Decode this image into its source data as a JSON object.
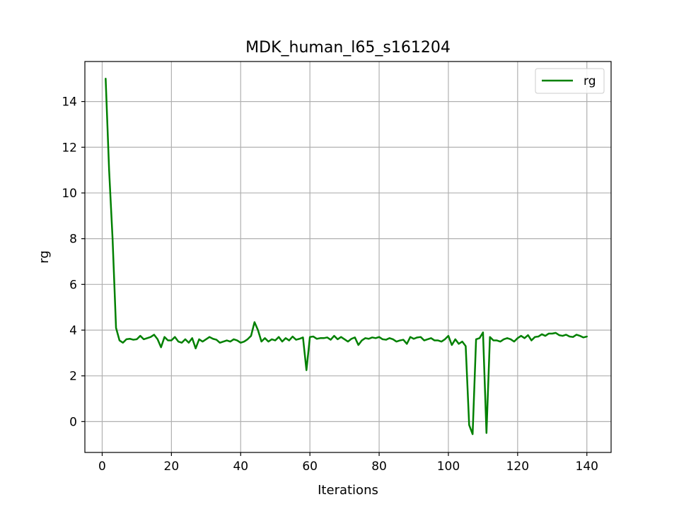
{
  "chart_data": {
    "type": "line",
    "title": "MDK_human_l65_s161204",
    "xlabel": "Iterations",
    "ylabel": "rg",
    "xlim": [
      -5,
      147
    ],
    "ylim": [
      -1.35,
      15.75
    ],
    "xticks": [
      0,
      20,
      40,
      60,
      80,
      100,
      120,
      140
    ],
    "yticks": [
      0,
      2,
      4,
      6,
      8,
      10,
      12,
      14
    ],
    "grid": true,
    "legend_position": "top-right",
    "series": [
      {
        "name": "rg",
        "color": "#008000",
        "x": [
          1,
          2,
          3,
          4,
          5,
          6,
          7,
          8,
          9,
          10,
          11,
          12,
          13,
          14,
          15,
          16,
          17,
          18,
          19,
          20,
          21,
          22,
          23,
          24,
          25,
          26,
          27,
          28,
          29,
          30,
          31,
          32,
          33,
          34,
          35,
          36,
          37,
          38,
          39,
          40,
          41,
          42,
          43,
          44,
          45,
          46,
          47,
          48,
          49,
          50,
          51,
          52,
          53,
          54,
          55,
          56,
          57,
          58,
          59,
          60,
          61,
          62,
          63,
          64,
          65,
          66,
          67,
          68,
          69,
          70,
          71,
          72,
          73,
          74,
          75,
          76,
          77,
          78,
          79,
          80,
          81,
          82,
          83,
          84,
          85,
          86,
          87,
          88,
          89,
          90,
          91,
          92,
          93,
          94,
          95,
          96,
          97,
          98,
          99,
          100,
          101,
          102,
          103,
          104,
          105,
          106,
          107,
          108,
          109,
          110,
          111,
          112,
          113,
          114,
          115,
          116,
          117,
          118,
          119,
          120,
          121,
          122,
          123,
          124,
          125,
          126,
          127,
          128,
          129,
          130,
          131,
          132,
          133,
          134,
          135,
          136,
          137,
          138,
          139,
          140
        ],
        "values": [
          15.0,
          11.0,
          8.0,
          4.1,
          3.55,
          3.45,
          3.6,
          3.62,
          3.58,
          3.6,
          3.75,
          3.6,
          3.65,
          3.7,
          3.8,
          3.6,
          3.25,
          3.7,
          3.55,
          3.55,
          3.7,
          3.5,
          3.45,
          3.6,
          3.45,
          3.65,
          3.2,
          3.6,
          3.5,
          3.6,
          3.7,
          3.62,
          3.58,
          3.45,
          3.5,
          3.55,
          3.5,
          3.6,
          3.55,
          3.45,
          3.5,
          3.6,
          3.75,
          4.35,
          4.0,
          3.5,
          3.65,
          3.5,
          3.6,
          3.55,
          3.7,
          3.5,
          3.65,
          3.55,
          3.72,
          3.58,
          3.62,
          3.68,
          2.25,
          3.7,
          3.72,
          3.62,
          3.65,
          3.65,
          3.68,
          3.58,
          3.75,
          3.6,
          3.7,
          3.6,
          3.5,
          3.62,
          3.68,
          3.35,
          3.55,
          3.65,
          3.62,
          3.68,
          3.65,
          3.7,
          3.6,
          3.58,
          3.65,
          3.6,
          3.5,
          3.55,
          3.58,
          3.4,
          3.7,
          3.62,
          3.68,
          3.7,
          3.55,
          3.6,
          3.65,
          3.55,
          3.55,
          3.5,
          3.6,
          3.75,
          3.35,
          3.6,
          3.4,
          3.5,
          3.3,
          -0.15,
          -0.55,
          3.6,
          3.65,
          3.9,
          -0.5,
          3.7,
          3.55,
          3.55,
          3.5,
          3.6,
          3.65,
          3.6,
          3.5,
          3.65,
          3.75,
          3.65,
          3.78,
          3.55,
          3.7,
          3.72,
          3.82,
          3.75,
          3.85,
          3.85,
          3.88,
          3.78,
          3.75,
          3.8,
          3.72,
          3.7,
          3.8,
          3.75,
          3.68,
          3.72
        ]
      }
    ]
  }
}
